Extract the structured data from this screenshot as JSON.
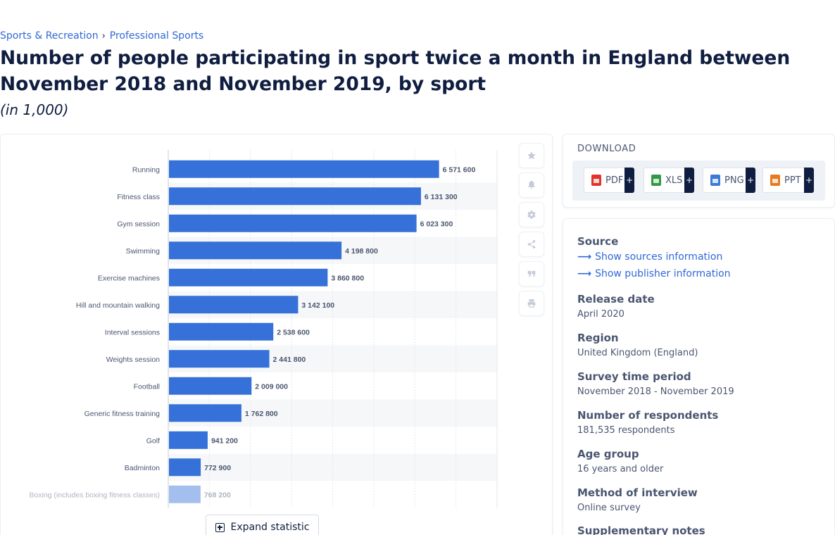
{
  "breadcrumb": {
    "items": [
      "Sports & Recreation",
      "Professional Sports"
    ],
    "separator": "›"
  },
  "title": "Number of people participating in sport twice a month in England between November 2018 and November 2019, by sport",
  "subtitle": "(in 1,000)",
  "chart_data": {
    "type": "bar",
    "orientation": "horizontal",
    "categories": [
      "Running",
      "Fitness class",
      "Gym session",
      "Swimming",
      "Exercise machines",
      "Hill and mountain walking",
      "Interval sessions",
      "Weights session",
      "Football",
      "Generic fitness training",
      "Golf",
      "Badminton",
      "Boxing (includes boxing fitness classes)"
    ],
    "values": [
      6571600,
      6131300,
      6023300,
      4198800,
      3860800,
      3142100,
      2538600,
      2441800,
      2009000,
      1762800,
      941200,
      772900,
      768200
    ],
    "value_labels": [
      "6 571 600",
      "6 131 300",
      "6 023 300",
      "4 198 800",
      "3 860 800",
      "3 142 100",
      "2 538 600",
      "2 441 800",
      "2 009 000",
      "1 762 800",
      "941 200",
      "772 900",
      "768 200"
    ],
    "xlim": [
      0,
      8000000
    ],
    "bar_color": "#3571d8",
    "grid": true
  },
  "toolbar": [
    "star-icon",
    "bell-icon",
    "gear-icon",
    "share-icon",
    "quote-icon",
    "print-icon"
  ],
  "expand_label": "Expand statistic",
  "download": {
    "title": "DOWNLOAD",
    "buttons": [
      {
        "label": "PDF",
        "color": "#e0342b"
      },
      {
        "label": "XLS",
        "color": "#2f9a45"
      },
      {
        "label": "PNG",
        "color": "#3a7bd5"
      },
      {
        "label": "PPT",
        "color": "#e8791f"
      }
    ],
    "plus": "+"
  },
  "info": {
    "source_heading": "Source",
    "links": [
      "Show sources information",
      "Show publisher information"
    ],
    "rows": [
      {
        "label": "Release date",
        "value": "April 2020"
      },
      {
        "label": "Region",
        "value": "United Kingdom (England)"
      },
      {
        "label": "Survey time period",
        "value": "November 2018 - November 2019"
      },
      {
        "label": "Number of respondents",
        "value": "181,535 respondents"
      },
      {
        "label": "Age group",
        "value": "16 years and older"
      },
      {
        "label": "Method of interview",
        "value": "Online survey"
      },
      {
        "label": "Supplementary notes",
        "value": ""
      }
    ]
  }
}
